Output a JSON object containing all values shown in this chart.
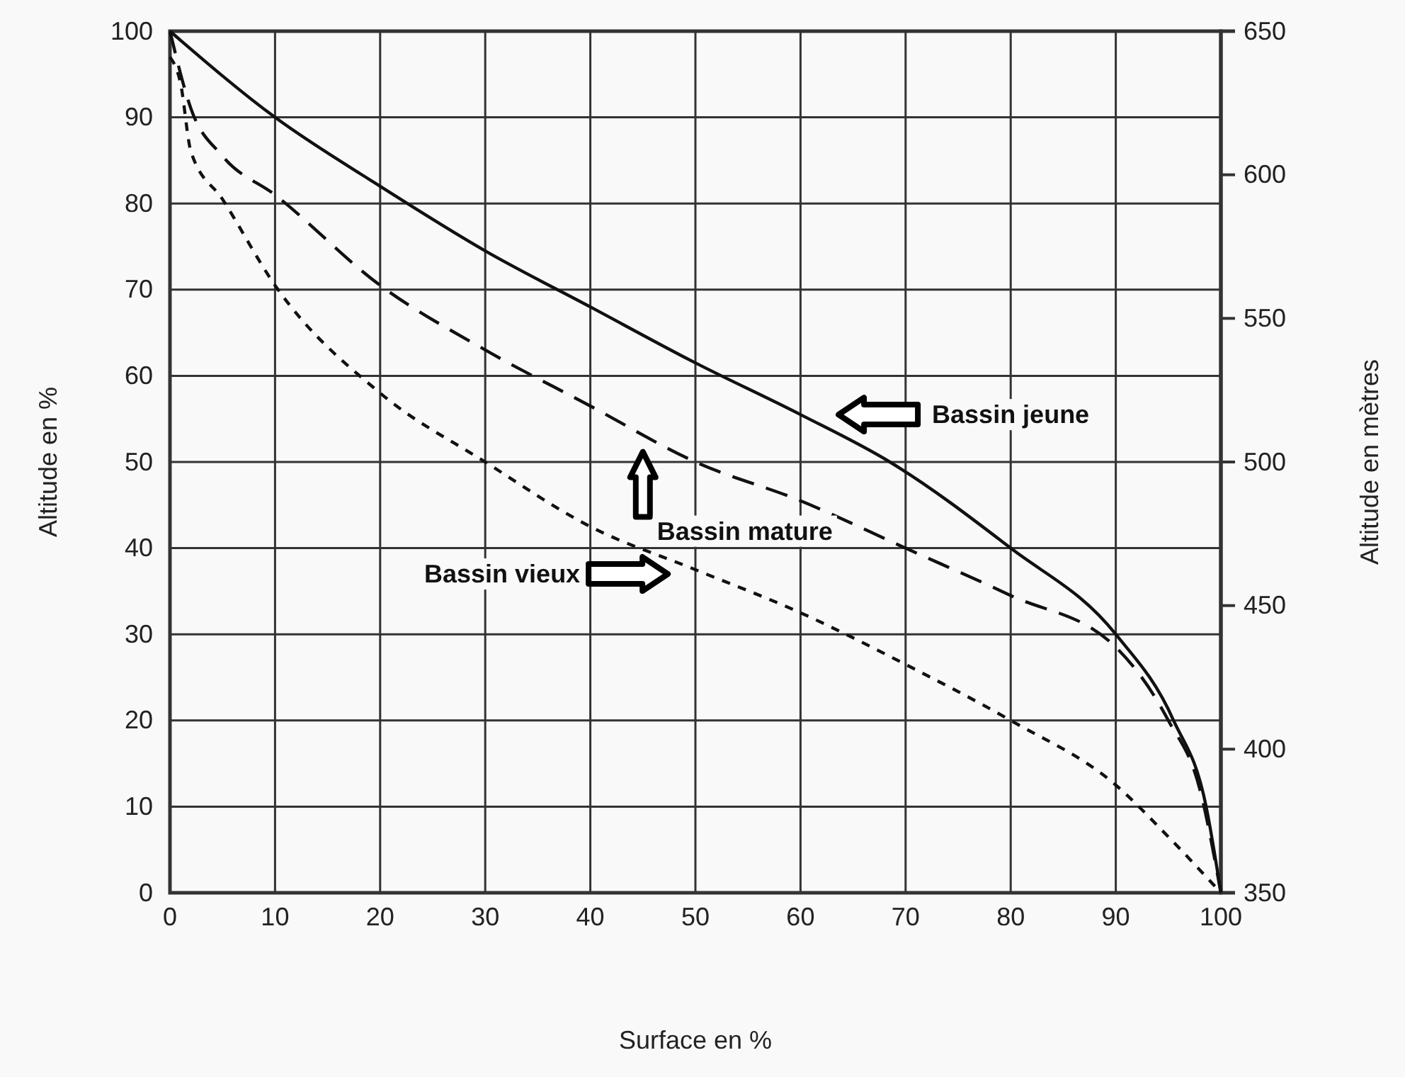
{
  "chart_data": {
    "type": "line",
    "xlabel": "Surface en %",
    "ylabel": "Altitude en %",
    "y2label": "Altitude en mètres",
    "xlim": [
      0,
      100
    ],
    "xticks": [
      0,
      10,
      20,
      30,
      40,
      50,
      60,
      70,
      80,
      90,
      100
    ],
    "ylim": [
      0,
      100
    ],
    "yticks": [
      0,
      10,
      20,
      30,
      40,
      50,
      60,
      70,
      80,
      90,
      100
    ],
    "y2lim": [
      350,
      650
    ],
    "y2ticks": [
      350,
      400,
      450,
      500,
      550,
      600,
      650
    ],
    "grid": true,
    "marker": "none",
    "series": [
      {
        "color": "#111111",
        "line_style": "solid",
        "x": [
          0,
          10,
          20,
          30,
          40,
          50,
          60,
          68.5,
          80,
          90,
          95.5,
          98.6,
          100
        ],
        "values": [
          100,
          90,
          82,
          74.5,
          68,
          61.5,
          55.5,
          50,
          40,
          30,
          20,
          10,
          0
        ]
      },
      {
        "color": "#111111",
        "line_style": "dashed",
        "x": [
          0,
          2,
          5,
          10,
          20,
          30,
          40,
          50,
          60,
          70,
          80,
          90,
          95,
          98,
          100
        ],
        "values": [
          100,
          91,
          85.5,
          81,
          70.5,
          63,
          56.5,
          50,
          45.5,
          40,
          34.5,
          28.5,
          20,
          12,
          0
        ]
      },
      {
        "color": "#111111",
        "line_style": "dotted",
        "x": [
          0,
          1,
          2,
          5,
          10,
          20,
          30,
          40,
          50,
          60,
          70,
          80,
          90,
          95,
          100
        ],
        "values": [
          97,
          94,
          86,
          80.5,
          70.5,
          58,
          50,
          42.5,
          37.5,
          32.5,
          26.5,
          20,
          12.5,
          6.5,
          0
        ]
      }
    ],
    "annotations": [
      "Bassin jeune",
      "Bassin mature",
      "Bassin vieux"
    ]
  }
}
